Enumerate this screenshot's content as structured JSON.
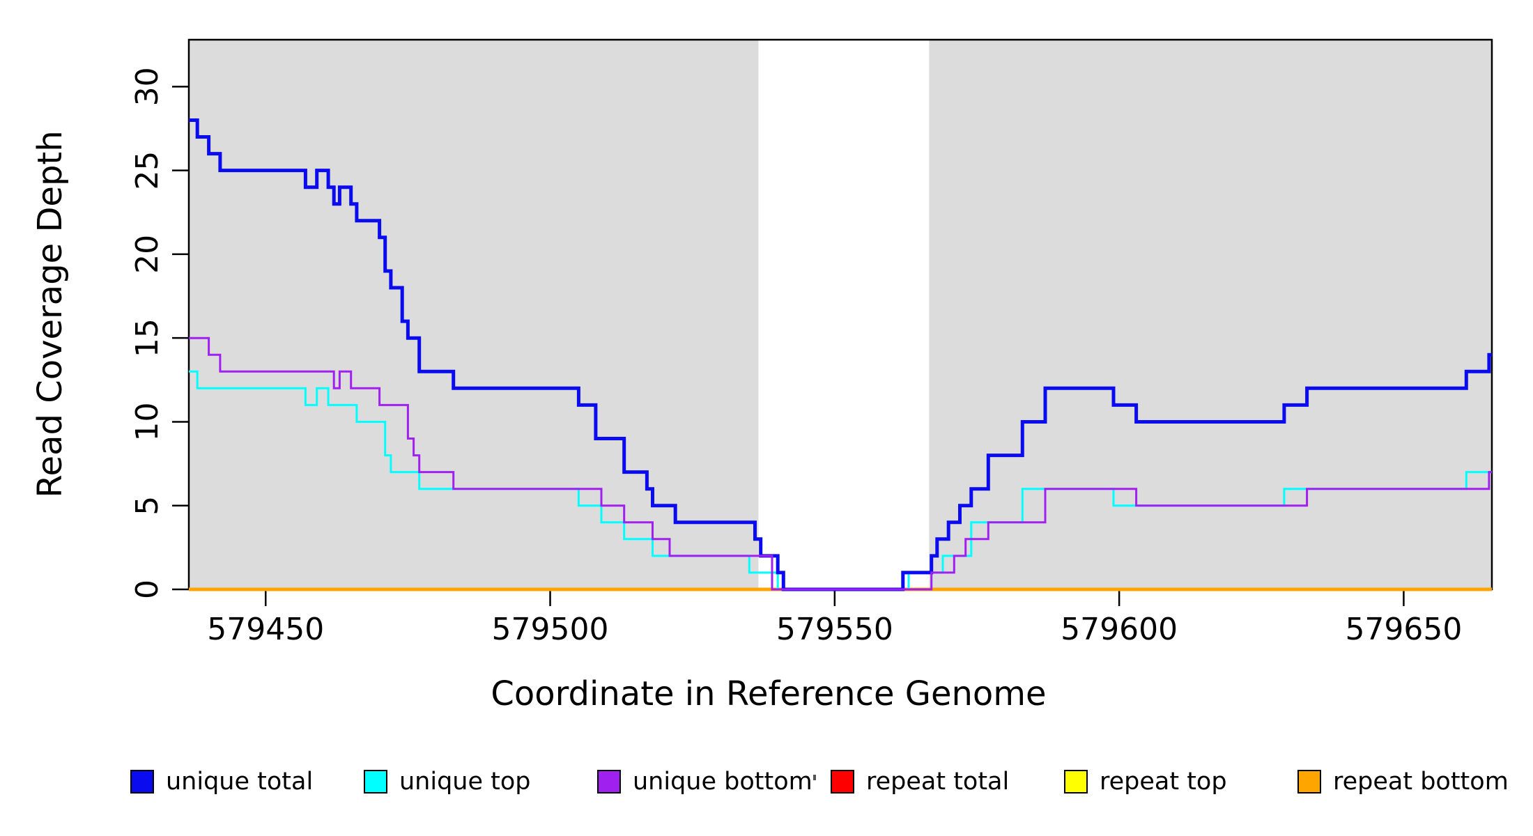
{
  "chart_data": {
    "type": "line",
    "subtype": "step",
    "title": "",
    "xlabel": "Coordinate in Reference Genome",
    "ylabel": "Read Coverage Depth",
    "xlim": [
      579436.5,
      579665.5
    ],
    "ylim": [
      0,
      32.8
    ],
    "x_ticks": [
      579450,
      579500,
      579550,
      579600,
      579650
    ],
    "y_ticks": [
      0,
      5,
      10,
      15,
      20,
      25,
      30
    ],
    "grid": false,
    "legend_position": "bottom",
    "shaded_regions": {
      "color": "#dcdcdc",
      "ranges": [
        [
          579436.5,
          579536.6
        ],
        [
          579566.6,
          579665.5
        ]
      ]
    },
    "series": [
      {
        "name": "repeat total",
        "color": "#ff0000",
        "width": 3,
        "steps": [
          [
            579436.5,
            0
          ]
        ]
      },
      {
        "name": "repeat top",
        "color": "#ffff00",
        "width": 3,
        "steps": [
          [
            579436.5,
            0
          ]
        ]
      },
      {
        "name": "repeat bottom",
        "color": "#ffa500",
        "width": 5,
        "steps": [
          [
            579436.5,
            0
          ]
        ]
      },
      {
        "name": "unique top",
        "color": "#00ffff",
        "width": 3,
        "steps": [
          [
            579436.5,
            13
          ],
          [
            579438,
            12
          ],
          [
            579457,
            11
          ],
          [
            579459,
            12
          ],
          [
            579461,
            11
          ],
          [
            579466,
            10
          ],
          [
            579471,
            8
          ],
          [
            579472,
            7
          ],
          [
            579477,
            6
          ],
          [
            579505,
            5
          ],
          [
            579509,
            4
          ],
          [
            579513,
            3
          ],
          [
            579518,
            2
          ],
          [
            579535,
            1
          ],
          [
            579540,
            0
          ],
          [
            579563,
            1
          ],
          [
            579569,
            2
          ],
          [
            579574,
            4
          ],
          [
            579583,
            6
          ],
          [
            579599,
            5
          ],
          [
            579629,
            6
          ],
          [
            579661,
            7
          ]
        ]
      },
      {
        "name": "unique total",
        "color": "#0b0bf0",
        "width": 5,
        "steps": [
          [
            579436.5,
            28
          ],
          [
            579438,
            27
          ],
          [
            579440,
            26
          ],
          [
            579442,
            25
          ],
          [
            579457,
            24
          ],
          [
            579459,
            25
          ],
          [
            579461,
            24
          ],
          [
            579462,
            23
          ],
          [
            579463,
            24
          ],
          [
            579465,
            23
          ],
          [
            579466,
            22
          ],
          [
            579470,
            21
          ],
          [
            579471,
            19
          ],
          [
            579472,
            18
          ],
          [
            579474,
            16
          ],
          [
            579475,
            15
          ],
          [
            579477,
            13
          ],
          [
            579483,
            12
          ],
          [
            579505,
            11
          ],
          [
            579508,
            9
          ],
          [
            579513,
            7
          ],
          [
            579517,
            6
          ],
          [
            579518,
            5
          ],
          [
            579522,
            4
          ],
          [
            579536,
            3
          ],
          [
            579537,
            2
          ],
          [
            579540,
            1
          ],
          [
            579541,
            0
          ],
          [
            579562,
            1
          ],
          [
            579567,
            2
          ],
          [
            579568,
            3
          ],
          [
            579570,
            4
          ],
          [
            579572,
            5
          ],
          [
            579574,
            6
          ],
          [
            579577,
            8
          ],
          [
            579583,
            10
          ],
          [
            579587,
            12
          ],
          [
            579599,
            11
          ],
          [
            579603,
            10
          ],
          [
            579629,
            11
          ],
          [
            579633,
            12
          ],
          [
            579661,
            13
          ],
          [
            579665,
            14
          ]
        ]
      },
      {
        "name": "unique bottom",
        "color": "#a020f0",
        "width": 3,
        "steps": [
          [
            579436.5,
            15
          ],
          [
            579440,
            14
          ],
          [
            579442,
            13
          ],
          [
            579462,
            12
          ],
          [
            579463,
            13
          ],
          [
            579465,
            12
          ],
          [
            579470,
            11
          ],
          [
            579475,
            9
          ],
          [
            579476,
            8
          ],
          [
            579477,
            7
          ],
          [
            579483,
            6
          ],
          [
            579509,
            5
          ],
          [
            579513,
            4
          ],
          [
            579518,
            3
          ],
          [
            579521,
            2
          ],
          [
            579539,
            0
          ],
          [
            579567,
            1
          ],
          [
            579571,
            2
          ],
          [
            579573,
            3
          ],
          [
            579577,
            4
          ],
          [
            579587,
            6
          ],
          [
            579603,
            5
          ],
          [
            579633,
            6
          ],
          [
            579665,
            7
          ]
        ]
      }
    ],
    "legend": {
      "items": [
        {
          "label": "unique total",
          "color": "#0b0bf0"
        },
        {
          "label": "unique top",
          "color": "#00ffff"
        },
        {
          "label": "unique bottom",
          "color": "#a020f0"
        },
        {
          "label": "repeat total",
          "color": "#ff0000"
        },
        {
          "label": "repeat top",
          "color": "#ffff00"
        },
        {
          "label": "repeat bottom",
          "color": "#ffa500"
        }
      ]
    }
  }
}
